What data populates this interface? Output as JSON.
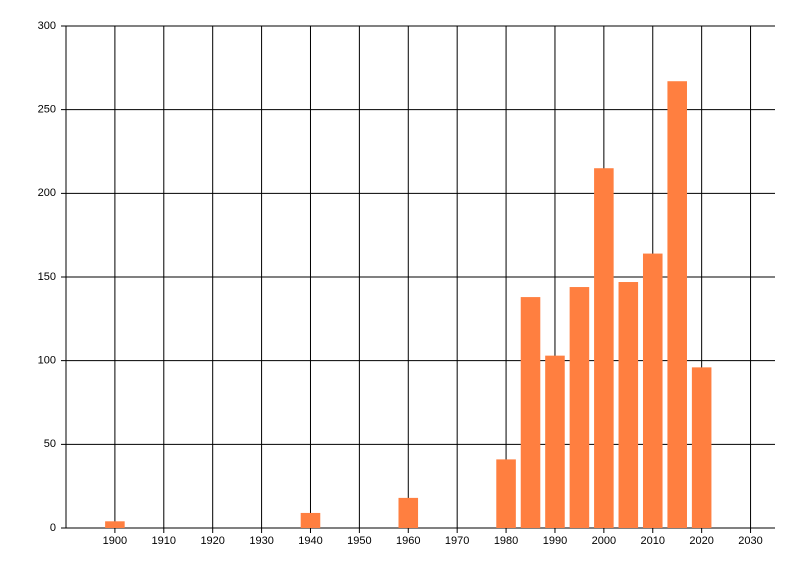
{
  "chart_data": {
    "type": "bar",
    "x": [
      1900,
      1940,
      1960,
      1980,
      1985,
      1990,
      1995,
      2000,
      2005,
      2010,
      2015,
      2020
    ],
    "values": [
      4,
      9,
      18,
      41,
      138,
      103,
      144,
      215,
      147,
      164,
      267,
      96
    ],
    "color": "#ff7f40",
    "xlim": [
      1890,
      2035
    ],
    "xticks": [
      1900,
      1910,
      1920,
      1930,
      1940,
      1950,
      1960,
      1970,
      1980,
      1990,
      2000,
      2010,
      2020,
      2030
    ],
    "ylim": [
      0,
      300
    ],
    "yticks": [
      0,
      50,
      100,
      150,
      200,
      250,
      300
    ],
    "grid": true
  }
}
